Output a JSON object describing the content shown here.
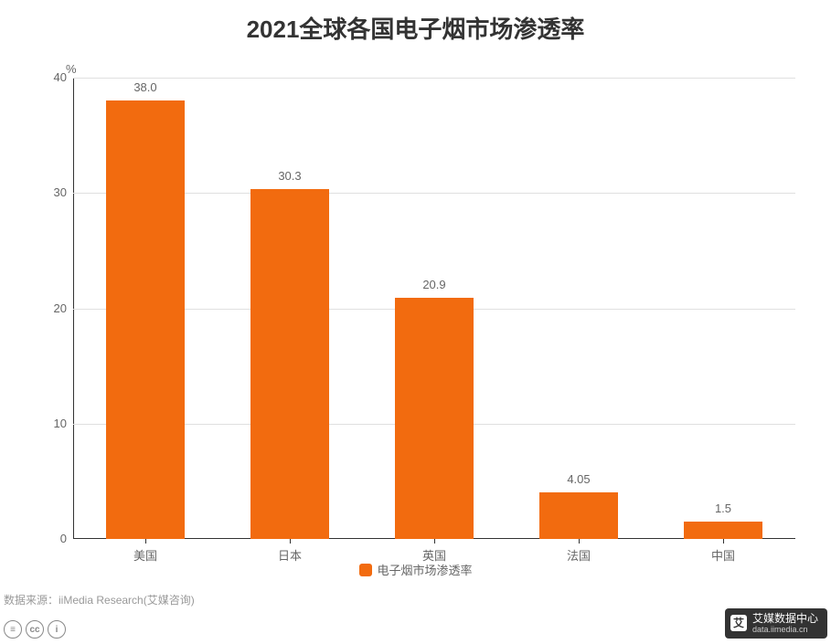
{
  "chart": {
    "type": "bar",
    "title": "2021全球各国电子烟市场渗透率",
    "title_fontsize": 26,
    "title_color": "#333333",
    "background_color": "#ffffff",
    "y_axis": {
      "unit": "%",
      "min": 0,
      "max": 40,
      "ticks": [
        0,
        10,
        20,
        30,
        40
      ],
      "tick_color": "#666666",
      "tick_fontsize": 13,
      "grid_color": "#e0e0e0",
      "axis_color": "#333333"
    },
    "x_axis": {
      "categories": [
        "美国",
        "日本",
        "英国",
        "法国",
        "中国"
      ],
      "label_color": "#666666",
      "label_fontsize": 13,
      "axis_color": "#333333"
    },
    "series": {
      "name": "电子烟市场渗透率",
      "color": "#f26b0f",
      "values": [
        38.0,
        30.3,
        20.9,
        4.05,
        1.5
      ],
      "value_labels": [
        "38.0",
        "30.3",
        "20.9",
        "4.05",
        "1.5"
      ],
      "value_label_color": "#666666",
      "value_label_fontsize": 13,
      "bar_width_ratio": 0.55
    },
    "legend": {
      "label": "电子烟市场渗透率",
      "swatch_color": "#f26b0f",
      "text_color": "#666666",
      "fontsize": 13
    }
  },
  "source": {
    "text": "数据来源：iiMedia Research(艾媒咨询)",
    "color": "#999999",
    "fontsize": 12
  },
  "footer": {
    "cc_icons": [
      "≡",
      "cc",
      "i"
    ],
    "brand": {
      "icon_text": "艾",
      "title": "艾媒数据中心",
      "subtitle": "data.iimedia.cn"
    }
  }
}
